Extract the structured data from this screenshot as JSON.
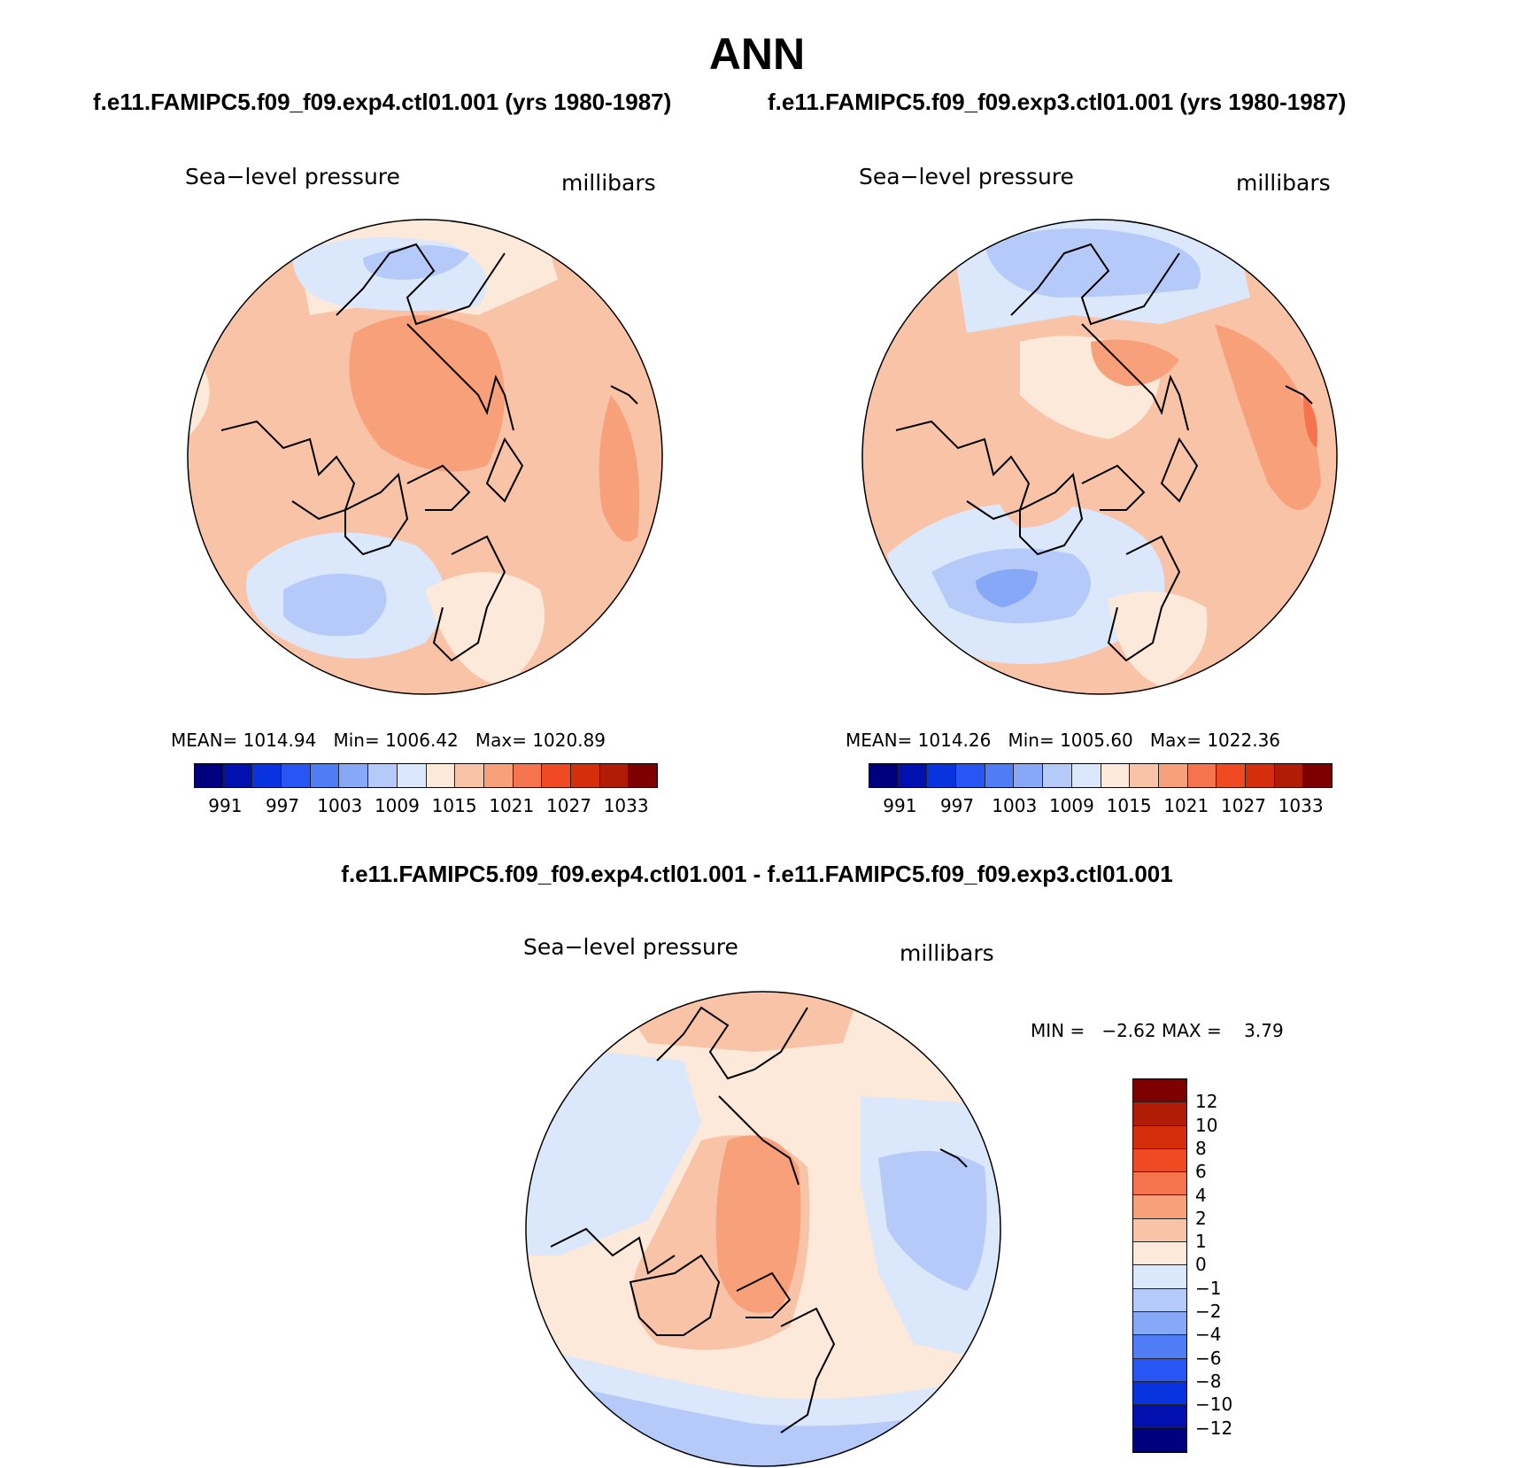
{
  "title": "ANN",
  "panels": [
    {
      "case": "f.e11.FAMIPC5.f09_f09.exp4.ctl01.001 (yrs 1980-1987)",
      "variable": "Sea−level pressure",
      "units": "millibars",
      "stats": {
        "mean_label": "MEAN=",
        "mean": "1014.94",
        "min_label": "Min=",
        "min": "1006.42",
        "max_label": "Max=",
        "max": "1020.89"
      }
    },
    {
      "case": "f.e11.FAMIPC5.f09_f09.exp3.ctl01.001 (yrs 1980-1987)",
      "variable": "Sea−level pressure",
      "units": "millibars",
      "stats": {
        "mean_label": "MEAN=",
        "mean": "1014.26",
        "min_label": "Min=",
        "min": "1005.60",
        "max_label": "Max=",
        "max": "1022.36"
      }
    }
  ],
  "abs_colorbar": {
    "ticks": [
      "991",
      "997",
      "1003",
      "1009",
      "1015",
      "1021",
      "1027",
      "1033"
    ],
    "colors": [
      "#00007f",
      "#0011b0",
      "#0a33e0",
      "#2856f5",
      "#4f7df5",
      "#86a8f7",
      "#b6caf9",
      "#dbe8fb",
      "#fde9d9",
      "#f9c3a8",
      "#f7a07a",
      "#f6744d",
      "#f04a22",
      "#d52e0a",
      "#b01c06",
      "#7f0000"
    ]
  },
  "difference": {
    "title": "f.e11.FAMIPC5.f09_f09.exp4.ctl01.001 - f.e11.FAMIPC5.f09_f09.exp3.ctl01.001",
    "variable": "Sea−level pressure",
    "units": "millibars",
    "stats": {
      "min_label": "MIN =",
      "min": "−2.62",
      "max_label": "MAX =",
      "max": "3.79"
    },
    "colorbar": {
      "ticks": [
        "12",
        "10",
        "8",
        "6",
        "4",
        "2",
        "1",
        "0",
        "−1",
        "−2",
        "−4",
        "−6",
        "−8",
        "−10",
        "−12"
      ],
      "colors": [
        "#7f0000",
        "#b01c06",
        "#d52e0a",
        "#f04a22",
        "#f6744d",
        "#f7a07a",
        "#f9c3a8",
        "#fde9d9",
        "#dbe8fb",
        "#b6caf9",
        "#86a8f7",
        "#4f7df5",
        "#2856f5",
        "#0a33e0",
        "#0011b0",
        "#00007f"
      ]
    }
  },
  "map_colors": {
    "neg2": "#b6caf9",
    "neg1": "#dbe8fb",
    "neg3": "#86a8f7",
    "pos1": "#fde9d9",
    "pos2": "#f9c3a8",
    "pos3": "#f7a07a",
    "pos4": "#f6744d"
  }
}
